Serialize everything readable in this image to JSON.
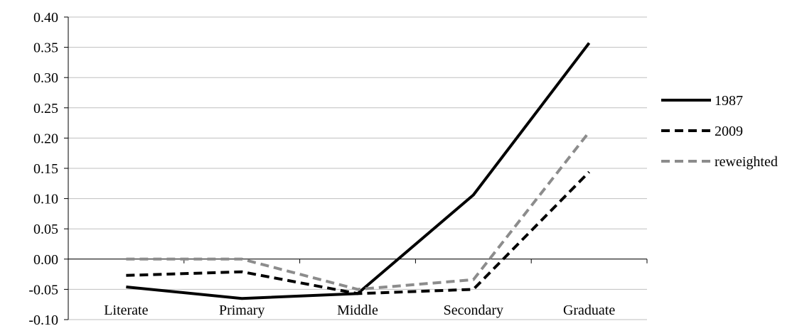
{
  "chart_data": {
    "type": "line",
    "categories": [
      "Literate",
      "Primary",
      "Middle",
      "Secondary",
      "Graduate"
    ],
    "series": [
      {
        "name": "1987",
        "values": [
          -0.046,
          -0.065,
          -0.057,
          0.106,
          0.357
        ],
        "color": "#000000",
        "dash": "solid"
      },
      {
        "name": "2009",
        "values": [
          -0.027,
          -0.021,
          -0.057,
          -0.05,
          0.144
        ],
        "color": "#000000",
        "dash": "dashed"
      },
      {
        "name": "reweighted",
        "values": [
          0.0,
          0.0,
          -0.05,
          -0.034,
          0.21
        ],
        "color": "#8c8c8c",
        "dash": "dashed"
      }
    ],
    "ylim": [
      -0.1,
      0.4
    ],
    "yticks": [
      "-0.10",
      "-0.05",
      "0.00",
      "0.05",
      "0.10",
      "0.15",
      "0.20",
      "0.25",
      "0.30",
      "0.35",
      "0.40"
    ],
    "grid": true,
    "legend_position": "right"
  }
}
